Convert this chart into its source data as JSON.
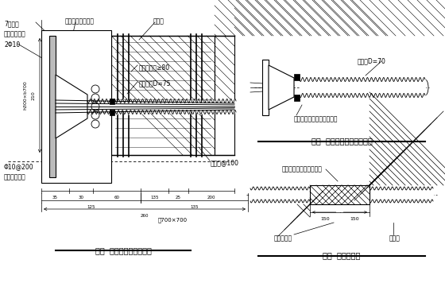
{
  "bg_color": "#ffffff",
  "title1": "图一  有粘结张拉端构造图",
  "title2": "图二  锚垫板与波纹管的连接",
  "title3": "图三  波纹管接头",
  "label_7hole": "7孔锚板",
  "label_anchor": "锚垫板（喇叭管）",
  "label_spiral": "螺旋筋",
  "label_prestress": "预应力钢绞线",
  "label_2phi10": "2Φ10",
  "label_col_main": "柱主筋净距≥80",
  "label_wave_d75": "波纹管外D=75",
  "label_col_hoop": "柱箍筋@100",
  "label_phi10": "Φ10@200",
  "label_seal": "封头张拉后浇",
  "label_col_size": "柱700×700",
  "label_h300": "h300×b700",
  "label_210": "210",
  "label_dim_top": "35 30  60    135    25",
  "label_125": "125",
  "label_135": "135",
  "label_260": "260",
  "label_200": "200",
  "label_wave_d70": "波纹管D=70",
  "label_cement": "用浸泡过水泥浆的棉纱封堵",
  "label_seal_tape": "密封胶带缠绕波纹管接口",
  "label_150a": "150",
  "label_150b": "150",
  "label_joint_wave": "接头波纹管",
  "label_wave_tube": "波纹管"
}
